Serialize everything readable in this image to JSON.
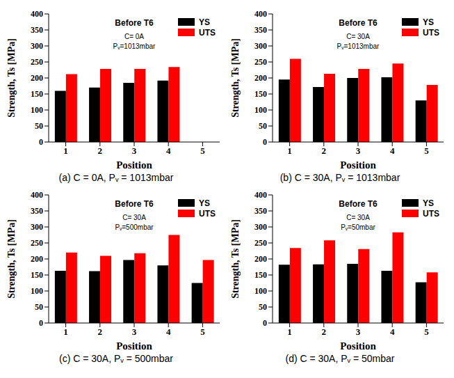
{
  "chart_data": [
    {
      "type": "bar",
      "title": "Before T6",
      "annotations": [
        "C= 0A",
        "Pᵥ=1013mbar"
      ],
      "caption": "(a) C = 0A, Pᵥ = 1013mbar",
      "x_label": "Position",
      "y_label": "Strength, Ts [MPa]",
      "categories": [
        1,
        2,
        3,
        4,
        5
      ],
      "series": [
        {
          "name": "YS",
          "color": "#000000",
          "values": [
            160,
            170,
            185,
            192,
            null
          ]
        },
        {
          "name": "UTS",
          "color": "#ff0000",
          "values": [
            212,
            228,
            228,
            234,
            null
          ]
        }
      ],
      "ylim": [
        0,
        400
      ],
      "yticks": [
        0,
        50,
        100,
        150,
        200,
        250,
        300,
        350,
        400
      ],
      "legend": "upper right"
    },
    {
      "type": "bar",
      "title": "Before T6",
      "annotations": [
        "C= 30A",
        "Pᵥ=1013mbar"
      ],
      "caption": "(b) C = 30A, Pᵥ = 1013mbar",
      "x_label": "Position",
      "y_label": "Strength, Ts [MPa]",
      "categories": [
        1,
        2,
        3,
        4,
        5
      ],
      "series": [
        {
          "name": "YS",
          "color": "#000000",
          "values": [
            195,
            172,
            200,
            202,
            130
          ]
        },
        {
          "name": "UTS",
          "color": "#ff0000",
          "values": [
            260,
            213,
            228,
            245,
            178
          ]
        }
      ],
      "ylim": [
        0,
        400
      ],
      "yticks": [
        0,
        50,
        100,
        150,
        200,
        250,
        300,
        350,
        400
      ],
      "legend": "upper right"
    },
    {
      "type": "bar",
      "title": "Before T6",
      "annotations": [
        "C= 30A",
        "Pᵥ=500mbar"
      ],
      "caption": "(c) C = 30A, Pᵥ = 500mbar",
      "x_label": "Position",
      "y_label": "Strength, Ts [MPa]",
      "categories": [
        1,
        2,
        3,
        4,
        5
      ],
      "series": [
        {
          "name": "YS",
          "color": "#000000",
          "values": [
            163,
            162,
            197,
            180,
            125
          ]
        },
        {
          "name": "UTS",
          "color": "#ff0000",
          "values": [
            220,
            210,
            218,
            275,
            197
          ]
        }
      ],
      "ylim": [
        0,
        400
      ],
      "yticks": [
        0,
        50,
        100,
        150,
        200,
        250,
        300,
        350,
        400
      ],
      "legend": "upper right"
    },
    {
      "type": "bar",
      "title": "Before T6",
      "annotations": [
        "C= 30A",
        "Pᵥ=50mbar"
      ],
      "caption": "(d) C = 30A, Pᵥ = 50mbar",
      "x_label": "Position",
      "y_label": "Strength, Ts [MPa]",
      "categories": [
        1,
        2,
        3,
        4,
        5
      ],
      "series": [
        {
          "name": "YS",
          "color": "#000000",
          "values": [
            182,
            183,
            185,
            163,
            127
          ]
        },
        {
          "name": "UTS",
          "color": "#ff0000",
          "values": [
            234,
            258,
            231,
            283,
            158
          ]
        }
      ],
      "ylim": [
        0,
        400
      ],
      "yticks": [
        0,
        50,
        100,
        150,
        200,
        250,
        300,
        350,
        400
      ],
      "legend": "upper right"
    }
  ]
}
